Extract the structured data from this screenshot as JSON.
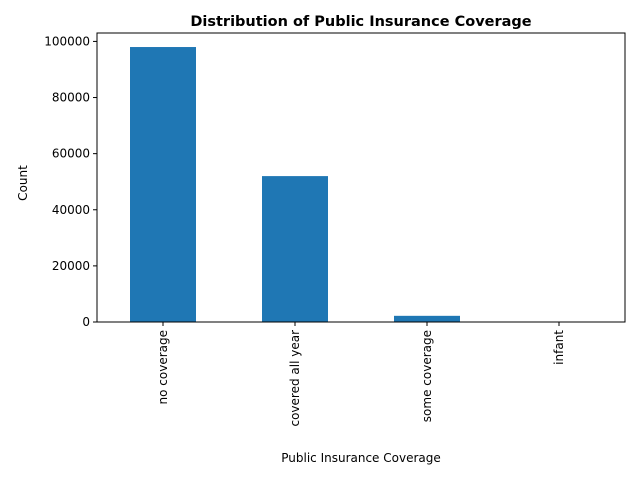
{
  "chart_data": {
    "type": "bar",
    "title": "Distribution of Public Insurance Coverage",
    "xlabel": "Public Insurance Coverage",
    "ylabel": "Count",
    "categories": [
      "no coverage",
      "covered all year",
      "some coverage",
      "infant"
    ],
    "values": [
      98000,
      52000,
      2200,
      150
    ],
    "ylim": [
      0,
      103000
    ],
    "yticks": [
      0,
      20000,
      40000,
      60000,
      80000,
      100000
    ],
    "ytick_labels": [
      "0",
      "20000",
      "40000",
      "60000",
      "80000",
      "100000"
    ],
    "bar_color": "#1f77b4",
    "grid": false,
    "legend": "none"
  }
}
